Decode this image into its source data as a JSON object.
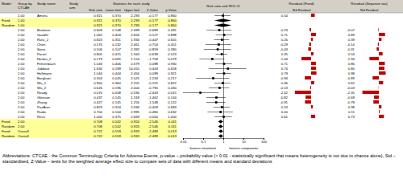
{
  "table": {
    "headers": {
      "model": "Model",
      "group": "Group by CTCAE",
      "study": "Study name",
      "arm": "Study arm",
      "stats_title": "Statistics for each study",
      "stats": [
        "Risk ratio",
        "Lower limit",
        "Upper limit",
        "Z-Value",
        "p-Value"
      ]
    },
    "rows": [
      {
        "group": "1.00",
        "study": "Amera",
        "stats": [
          0.921,
          0.37,
          2.293,
          -0.177,
          0.86
        ]
      },
      {
        "model": "Fixed",
        "group": "1.00",
        "stats": [
          0.921,
          0.37,
          2.293,
          -0.177,
          0.86
        ]
      },
      {
        "model": "Random",
        "group": "1.00",
        "stats": [
          0.921,
          0.37,
          2.293,
          -0.177,
          0.86
        ]
      },
      {
        "group": "2.00",
        "study": "Brahmer",
        "stats": [
          0.609,
          0.148,
          2.499,
          -0.689,
          0.491
        ]
      },
      {
        "group": "2.00",
        "study": "Gandhi",
        "stats": [
          1.062,
          0.424,
          2.656,
          0.127,
          0.898
        ]
      },
      {
        "group": "2.00",
        "study": "Rizvi_2",
        "stats": [
          0.823,
          0.351,
          1.934,
          -0.447,
          0.655
        ]
      },
      {
        "group": "2.00",
        "study": "Chen",
        "stats": [
          0.57,
          0.132,
          2.461,
          -0.754,
          0.451
        ]
      },
      {
        "group": "2.00",
        "study": "Sona",
        "stats": [
          0.506,
          0.107,
          2.392,
          -0.859,
          0.39
        ]
      },
      {
        "group": "2.00",
        "study": "Parrel",
        "stats": [
          0.805,
          0.415,
          1.563,
          -0.639,
          0.523
        ]
      },
      {
        "group": "2.00",
        "study": "Herbst_2",
        "stats": [
          0.273,
          0.065,
          1.154,
          -1.758,
          0.079
        ]
      },
      {
        "group": "2.00",
        "study": "Fehrenbach",
        "stats": [
          1.043,
          0.406,
          2.679,
          0.088,
          0.93
        ]
      },
      {
        "group": "2.00",
        "study": "Jabbour",
        "stats": [
          1.63,
          0.189,
          14.055,
          0.443,
          0.658
        ]
      },
      {
        "group": "2.00",
        "study": "Hellmann",
        "stats": [
          1.044,
          0.444,
          2.456,
          0.099,
          0.921
        ]
      },
      {
        "group": "2.00",
        "study": "Borghaei",
        "stats": [
          0.303,
          0.045,
          2.025,
          -1.234,
          0.217
        ]
      },
      {
        "group": "2.00",
        "study": "Wu_1",
        "stats": [
          0.9,
          0.36,
          2.255,
          -0.225,
          0.822
        ]
      },
      {
        "group": "2.00",
        "study": "Wu_2",
        "stats": [
          0.626,
          0.196,
          2.0,
          -0.79,
          0.43
        ]
      },
      {
        "group": "2.00",
        "study": "Ready",
        "stats": [
          0.07,
          0.008,
          0.594,
          -2.443,
          0.015
        ]
      },
      {
        "group": "2.00",
        "study": "Gleeson",
        "stats": [
          0.437,
          0.145,
          1.318,
          -1.462,
          0.144
        ]
      },
      {
        "group": "2.00",
        "study": "Zhang",
        "stats": [
          0.427,
          0.145,
          1.256,
          -1.548,
          0.122
        ]
      },
      {
        "group": "2.00",
        "study": "PazAres",
        "stats": [
          0.823,
          0.324,
          2.094,
          -0.409,
          0.683
        ]
      },
      {
        "group": "2.00",
        "study": "Rudin",
        "stats": [
          0.7,
          0.164,
          2.995,
          -0.48,
          0.632
        ]
      },
      {
        "group": "2.00",
        "study": "Reck",
        "stats": [
          1.0,
          0.375,
          2.669,
          0.0,
          1.0
        ]
      },
      {
        "model": "Fixed",
        "group": "2.00",
        "stats": [
          0.708,
          0.542,
          0.924,
          -2.546,
          0.011
        ]
      },
      {
        "model": "Random",
        "group": "2.00",
        "stats": [
          0.708,
          0.542,
          0.924,
          -2.546,
          0.011
        ]
      },
      {
        "model": "Fixed",
        "group": "Overall",
        "stats": [
          0.722,
          0.559,
          0.933,
          -2.489,
          0.013
        ]
      },
      {
        "model": "Random",
        "group": "Overall",
        "stats": [
          0.722,
          0.559,
          0.933,
          -2.489,
          0.013
        ]
      }
    ]
  },
  "chart_data": [
    {
      "type": "forest",
      "title": "Risk ratio and 95% CI",
      "log": "x",
      "xlim": [
        0.01,
        100
      ],
      "xticks": [
        0.01,
        0.1,
        1,
        10,
        100
      ],
      "reference_line": 1,
      "annotations": [
        "favours treatment",
        "favours comparator"
      ],
      "color": "#000000",
      "marker": "square"
    },
    {
      "type": "bar",
      "orientation": "horizontal",
      "title": "Residual (Fixed)",
      "x_label": "Std Residual",
      "xlim": [
        -3,
        3
      ],
      "tick_labels": false,
      "data_labels": true,
      "color": "#c00000",
      "values": [
        0.54,
        null,
        null,
        -0.23,
        0.71,
        0.26,
        -0.29,
        -0.43,
        0.35,
        -1.44,
        0.71,
        0.74,
        0.79,
        -0.94,
        0.46,
        -0.13,
        -2.42,
        -0.82,
        -0.91,
        0.24,
        0.0,
        0.61,
        null,
        null,
        null,
        null
      ]
    },
    {
      "type": "bar",
      "orientation": "horizontal",
      "title": "Residual (Separate tau)",
      "x_label": "Std Residual",
      "xlim": [
        -3,
        3
      ],
      "tick_labels": false,
      "data_labels": true,
      "color": "#c00000",
      "values": [
        null,
        null,
        null,
        -0.07,
        0.89,
        0.39,
        -0.14,
        -0.31,
        0.54,
        -1.34,
        0.86,
        0.8,
        0.98,
        -0.89,
        0.62,
        -0.03,
        -2.35,
        -0.69,
        -0.78,
        0.38,
        0.11,
        0.73,
        null,
        null,
        null,
        null
      ]
    }
  ],
  "footnote": "Abbreviations: CTCAE - the Common Terminology Criteria for Adverse Events, p-value – probability value (< 0.01 - statistically significant that means heterogeneity is not due to chance alone), Std – standardised, Z-Value – tests for the weighted average effect size to compare sets of data with different means and standard deviations"
}
